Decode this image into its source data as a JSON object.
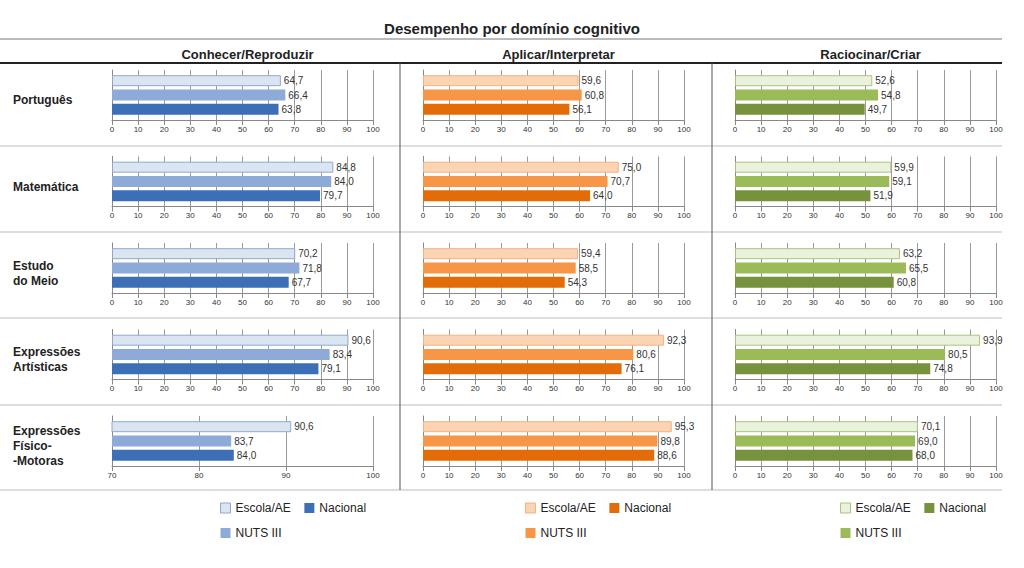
{
  "title": "Desempenho por domínio cognitivo",
  "columns": [
    "Conhecer/Reproduzir",
    "Aplicar/Interpretar",
    "Raciocinar/Criar"
  ],
  "rows": [
    [
      "Português"
    ],
    [
      "Matemática"
    ],
    [
      "Estudo",
      "do Meio"
    ],
    [
      "Expressões",
      "Artísticas"
    ],
    [
      "Expressões",
      "Físico-",
      "-Motoras"
    ]
  ],
  "chart_data": [
    {
      "type": "bar",
      "orientation": "horizontal",
      "data_labels": true,
      "grid": true,
      "xlim": [
        0,
        100
      ],
      "xticks": [
        0,
        10,
        20,
        30,
        40,
        50,
        60,
        70,
        80,
        90,
        100
      ],
      "series": [
        {
          "name": "Escola/AE",
          "color": "#dbe5f1",
          "values": [
            64.7
          ],
          "value_labels": [
            "64,7"
          ]
        },
        {
          "name": "NUTS III",
          "color": "#8eaad8",
          "values": [
            66.4
          ],
          "value_labels": [
            "66,4"
          ]
        },
        {
          "name": "Nacional",
          "color": "#3d6fb6",
          "values": [
            63.8
          ],
          "value_labels": [
            "63,8"
          ]
        }
      ]
    },
    {
      "type": "bar",
      "orientation": "horizontal",
      "data_labels": true,
      "grid": true,
      "xlim": [
        0,
        100
      ],
      "xticks": [
        0,
        10,
        20,
        30,
        40,
        50,
        60,
        70,
        80,
        90,
        100
      ],
      "series": [
        {
          "name": "Escola/AE",
          "color": "#fbd4b4",
          "values": [
            59.6
          ],
          "value_labels": [
            "59,6"
          ]
        },
        {
          "name": "NUTS III",
          "color": "#f79646",
          "values": [
            60.8
          ],
          "value_labels": [
            "60,8"
          ]
        },
        {
          "name": "Nacional",
          "color": "#e36c09",
          "values": [
            56.1
          ],
          "value_labels": [
            "56,1"
          ]
        }
      ]
    },
    {
      "type": "bar",
      "orientation": "horizontal",
      "data_labels": true,
      "grid": true,
      "xlim": [
        0,
        100
      ],
      "xticks": [
        0,
        10,
        20,
        30,
        40,
        50,
        60,
        70,
        80,
        90,
        100
      ],
      "series": [
        {
          "name": "Escola/AE",
          "color": "#eaf1dd",
          "values": [
            52.6
          ],
          "value_labels": [
            "52,6"
          ]
        },
        {
          "name": "NUTS III",
          "color": "#9bbb59",
          "values": [
            54.8
          ],
          "value_labels": [
            "54,8"
          ]
        },
        {
          "name": "Nacional",
          "color": "#76923c",
          "values": [
            49.7
          ],
          "value_labels": [
            "49,7"
          ]
        }
      ]
    },
    {
      "type": "bar",
      "orientation": "horizontal",
      "data_labels": true,
      "grid": true,
      "xlim": [
        0,
        100
      ],
      "xticks": [
        0,
        10,
        20,
        30,
        40,
        50,
        60,
        70,
        80,
        90,
        100
      ],
      "series": [
        {
          "name": "Escola/AE",
          "color": "#dbe5f1",
          "values": [
            84.8
          ],
          "value_labels": [
            "84,8"
          ]
        },
        {
          "name": "NUTS III",
          "color": "#8eaad8",
          "values": [
            84.0
          ],
          "value_labels": [
            "84,0"
          ]
        },
        {
          "name": "Nacional",
          "color": "#3d6fb6",
          "values": [
            79.7
          ],
          "value_labels": [
            "79,7"
          ]
        }
      ]
    },
    {
      "type": "bar",
      "orientation": "horizontal",
      "data_labels": true,
      "grid": true,
      "xlim": [
        0,
        100
      ],
      "xticks": [
        0,
        10,
        20,
        30,
        40,
        50,
        60,
        70,
        80,
        90,
        100
      ],
      "series": [
        {
          "name": "Escola/AE",
          "color": "#fbd4b4",
          "values": [
            75.0
          ],
          "value_labels": [
            "75,0"
          ]
        },
        {
          "name": "NUTS III",
          "color": "#f79646",
          "values": [
            70.7
          ],
          "value_labels": [
            "70,7"
          ]
        },
        {
          "name": "Nacional",
          "color": "#e36c09",
          "values": [
            64.0
          ],
          "value_labels": [
            "64,0"
          ]
        }
      ]
    },
    {
      "type": "bar",
      "orientation": "horizontal",
      "data_labels": true,
      "grid": true,
      "xlim": [
        0,
        100
      ],
      "xticks": [
        0,
        10,
        20,
        30,
        40,
        50,
        60,
        70,
        80,
        90,
        100
      ],
      "series": [
        {
          "name": "Escola/AE",
          "color": "#eaf1dd",
          "values": [
            59.9
          ],
          "value_labels": [
            "59,9"
          ]
        },
        {
          "name": "NUTS III",
          "color": "#9bbb59",
          "values": [
            59.1
          ],
          "value_labels": [
            "59,1"
          ]
        },
        {
          "name": "Nacional",
          "color": "#76923c",
          "values": [
            51.9
          ],
          "value_labels": [
            "51,9"
          ]
        }
      ]
    },
    {
      "type": "bar",
      "orientation": "horizontal",
      "data_labels": true,
      "grid": true,
      "xlim": [
        0,
        100
      ],
      "xticks": [
        0,
        10,
        20,
        30,
        40,
        50,
        60,
        70,
        80,
        90,
        100
      ],
      "series": [
        {
          "name": "Escola/AE",
          "color": "#dbe5f1",
          "values": [
            70.2
          ],
          "value_labels": [
            "70,2"
          ]
        },
        {
          "name": "NUTS III",
          "color": "#8eaad8",
          "values": [
            71.8
          ],
          "value_labels": [
            "71,8"
          ]
        },
        {
          "name": "Nacional",
          "color": "#3d6fb6",
          "values": [
            67.7
          ],
          "value_labels": [
            "67,7"
          ]
        }
      ]
    },
    {
      "type": "bar",
      "orientation": "horizontal",
      "data_labels": true,
      "grid": true,
      "xlim": [
        0,
        100
      ],
      "xticks": [
        0,
        10,
        20,
        30,
        40,
        50,
        60,
        70,
        80,
        90,
        100
      ],
      "series": [
        {
          "name": "Escola/AE",
          "color": "#fbd4b4",
          "values": [
            59.4
          ],
          "value_labels": [
            "59,4"
          ]
        },
        {
          "name": "NUTS III",
          "color": "#f79646",
          "values": [
            58.5
          ],
          "value_labels": [
            "58,5"
          ]
        },
        {
          "name": "Nacional",
          "color": "#e36c09",
          "values": [
            54.3
          ],
          "value_labels": [
            "54,3"
          ]
        }
      ]
    },
    {
      "type": "bar",
      "orientation": "horizontal",
      "data_labels": true,
      "grid": true,
      "xlim": [
        0,
        100
      ],
      "xticks": [
        0,
        10,
        20,
        30,
        40,
        50,
        60,
        70,
        80,
        90,
        100
      ],
      "series": [
        {
          "name": "Escola/AE",
          "color": "#eaf1dd",
          "values": [
            63.2
          ],
          "value_labels": [
            "63,2"
          ]
        },
        {
          "name": "NUTS III",
          "color": "#9bbb59",
          "values": [
            65.5
          ],
          "value_labels": [
            "65,5"
          ]
        },
        {
          "name": "Nacional",
          "color": "#76923c",
          "values": [
            60.8
          ],
          "value_labels": [
            "60,8"
          ]
        }
      ]
    },
    {
      "type": "bar",
      "orientation": "horizontal",
      "data_labels": true,
      "grid": true,
      "xlim": [
        0,
        100
      ],
      "xticks": [
        0,
        10,
        20,
        30,
        40,
        50,
        60,
        70,
        80,
        90,
        100
      ],
      "series": [
        {
          "name": "Escola/AE",
          "color": "#dbe5f1",
          "values": [
            90.6
          ],
          "value_labels": [
            "90,6"
          ]
        },
        {
          "name": "NUTS III",
          "color": "#8eaad8",
          "values": [
            83.4
          ],
          "value_labels": [
            "83,4"
          ]
        },
        {
          "name": "Nacional",
          "color": "#3d6fb6",
          "values": [
            79.1
          ],
          "value_labels": [
            "79,1"
          ]
        }
      ]
    },
    {
      "type": "bar",
      "orientation": "horizontal",
      "data_labels": true,
      "grid": true,
      "xlim": [
        0,
        100
      ],
      "xticks": [
        0,
        10,
        20,
        30,
        40,
        50,
        60,
        70,
        80,
        90,
        100
      ],
      "series": [
        {
          "name": "Escola/AE",
          "color": "#fbd4b4",
          "values": [
            92.3
          ],
          "value_labels": [
            "92,3"
          ]
        },
        {
          "name": "NUTS III",
          "color": "#f79646",
          "values": [
            80.6
          ],
          "value_labels": [
            "80,6"
          ]
        },
        {
          "name": "Nacional",
          "color": "#e36c09",
          "values": [
            76.1
          ],
          "value_labels": [
            "76,1"
          ]
        }
      ]
    },
    {
      "type": "bar",
      "orientation": "horizontal",
      "data_labels": true,
      "grid": true,
      "xlim": [
        0,
        100
      ],
      "xticks": [
        0,
        10,
        20,
        30,
        40,
        50,
        60,
        70,
        80,
        90,
        100
      ],
      "series": [
        {
          "name": "Escola/AE",
          "color": "#eaf1dd",
          "values": [
            93.9
          ],
          "value_labels": [
            "93,9"
          ]
        },
        {
          "name": "NUTS III",
          "color": "#9bbb59",
          "values": [
            80.5
          ],
          "value_labels": [
            "80,5"
          ]
        },
        {
          "name": "Nacional",
          "color": "#76923c",
          "values": [
            74.8
          ],
          "value_labels": [
            "74,8"
          ]
        }
      ]
    },
    {
      "type": "bar",
      "orientation": "horizontal",
      "data_labels": true,
      "grid": true,
      "legend": "bottom",
      "xlim": [
        70,
        100
      ],
      "xticks": [
        70,
        80,
        90,
        100
      ],
      "series": [
        {
          "name": "Escola/AE",
          "color": "#dbe5f1",
          "values": [
            90.6
          ],
          "value_labels": [
            "90,6"
          ]
        },
        {
          "name": "NUTS III",
          "color": "#8eaad8",
          "values": [
            83.7
          ],
          "value_labels": [
            "83,7"
          ]
        },
        {
          "name": "Nacional",
          "color": "#3d6fb6",
          "values": [
            84.0
          ],
          "value_labels": [
            "84,0"
          ]
        }
      ]
    },
    {
      "type": "bar",
      "orientation": "horizontal",
      "data_labels": true,
      "grid": true,
      "legend": "bottom",
      "xlim": [
        0,
        100
      ],
      "xticks": [
        0,
        10,
        20,
        30,
        40,
        50,
        60,
        70,
        80,
        90,
        100
      ],
      "series": [
        {
          "name": "Escola/AE",
          "color": "#fbd4b4",
          "values": [
            95.3
          ],
          "value_labels": [
            "95,3"
          ]
        },
        {
          "name": "NUTS III",
          "color": "#f79646",
          "values": [
            89.8
          ],
          "value_labels": [
            "89,8"
          ]
        },
        {
          "name": "Nacional",
          "color": "#e36c09",
          "values": [
            88.6
          ],
          "value_labels": [
            "88,6"
          ]
        }
      ]
    },
    {
      "type": "bar",
      "orientation": "horizontal",
      "data_labels": true,
      "grid": true,
      "legend": "bottom",
      "xlim": [
        0,
        100
      ],
      "xticks": [
        0,
        10,
        20,
        30,
        40,
        50,
        60,
        70,
        80,
        90,
        100
      ],
      "series": [
        {
          "name": "Escola/AE",
          "color": "#eaf1dd",
          "values": [
            70.1
          ],
          "value_labels": [
            "70,1"
          ]
        },
        {
          "name": "NUTS III",
          "color": "#9bbb59",
          "values": [
            69.0
          ],
          "value_labels": [
            "69,0"
          ]
        },
        {
          "name": "Nacional",
          "color": "#76923c",
          "values": [
            68.0
          ],
          "value_labels": [
            "68,0"
          ]
        }
      ]
    }
  ]
}
